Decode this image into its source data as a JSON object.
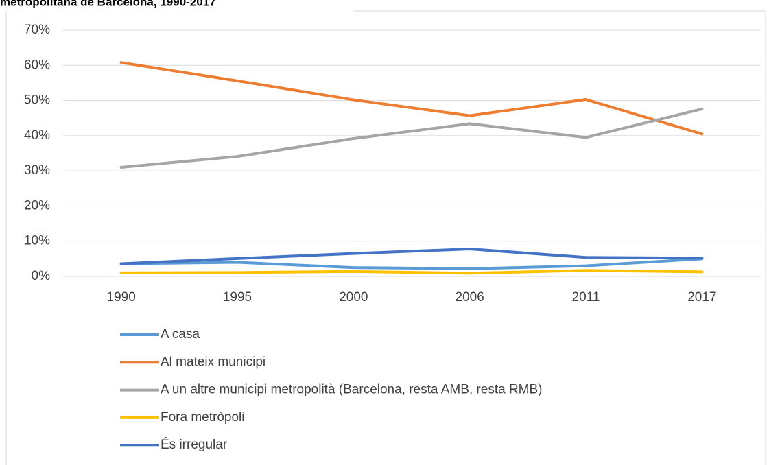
{
  "chart_data": {
    "type": "line",
    "title": "metropolitana de Barcelona, 1990-2017",
    "categories": [
      "1990",
      "1995",
      "2000",
      "2006",
      "2011",
      "2017"
    ],
    "series": [
      {
        "name": "A casa",
        "color": "#5b9bd5",
        "values": [
          3.6,
          4.0,
          2.5,
          2.2,
          3.0,
          5.0
        ]
      },
      {
        "name": "Al mateix municipi",
        "color": "#ed7d31",
        "values": [
          60.8,
          55.6,
          50.2,
          45.7,
          50.3,
          40.5
        ]
      },
      {
        "name": "A un altre municipi metropolità (Barcelona, resta AMB, resta RMB)",
        "color": "#a5a5a5",
        "values": [
          31.0,
          34.1,
          39.2,
          43.4,
          39.5,
          47.6
        ]
      },
      {
        "name": "Fora metròpoli",
        "color": "#ffc000",
        "values": [
          1.0,
          1.1,
          1.4,
          0.9,
          1.7,
          1.3
        ]
      },
      {
        "name": "És irregular",
        "color": "#4472c4",
        "values": [
          3.6,
          5.1,
          6.5,
          7.8,
          5.4,
          5.2
        ]
      }
    ],
    "ylim": [
      0,
      70
    ],
    "yticks": [
      {
        "value": 0,
        "label": "0%"
      },
      {
        "value": 10,
        "label": "10%"
      },
      {
        "value": 20,
        "label": "20%"
      },
      {
        "value": 30,
        "label": "30%"
      },
      {
        "value": 40,
        "label": "40%"
      },
      {
        "value": 50,
        "label": "50%"
      },
      {
        "value": 60,
        "label": "60%"
      },
      {
        "value": 70,
        "label": "70%"
      }
    ],
    "grid": true,
    "legend": "bottom"
  }
}
